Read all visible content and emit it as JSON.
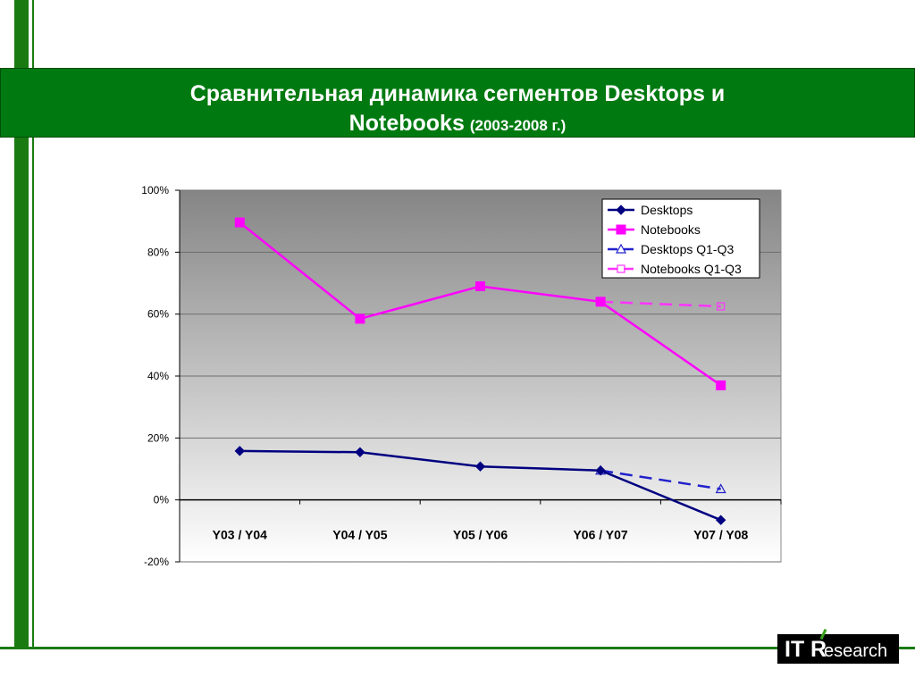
{
  "slide": {
    "title_line1": "Сравнительная динамика сегментов Desktops и",
    "title_line2": "Notebooks",
    "title_years": "(2003-2008 г.)"
  },
  "logo": {
    "it": "IT",
    "r": "R",
    "rest": "esearch"
  },
  "colors": {
    "frame_green": "#1a7a12",
    "title_bg": "#007a10",
    "desktops": "#000080",
    "notebooks": "#ff00ff",
    "desktops_q": "#2222cc",
    "notebooks_q": "#ff33ff"
  },
  "chart_data": {
    "type": "line",
    "title": "",
    "xlabel": "",
    "ylabel": "",
    "categories": [
      "Y03 / Y04",
      "Y04 / Y05",
      "Y05 / Y06",
      "Y06 / Y07",
      "Y07 / Y08"
    ],
    "ylim": [
      -20,
      100
    ],
    "yticks": [
      -20,
      0,
      20,
      40,
      60,
      80,
      100
    ],
    "ytick_labels": [
      "-20%",
      "0%",
      "20%",
      "40%",
      "60%",
      "80%",
      "100%"
    ],
    "grid": true,
    "legend_position": "top-right",
    "series": [
      {
        "name": "Desktops",
        "values": [
          15.8,
          15.4,
          10.8,
          9.5,
          -6.5
        ],
        "color": "#000080",
        "marker": "diamond",
        "dashed": false
      },
      {
        "name": "Notebooks",
        "values": [
          89.6,
          58.5,
          69.0,
          64.0,
          37.0
        ],
        "color": "#ff00ff",
        "marker": "square",
        "dashed": false
      },
      {
        "name": "Desktops Q1-Q3",
        "values": [
          null,
          null,
          null,
          9.5,
          3.5
        ],
        "color": "#2222cc",
        "marker": "triangle",
        "dashed": true
      },
      {
        "name": "Notebooks Q1-Q3",
        "values": [
          null,
          null,
          null,
          64.0,
          62.5
        ],
        "color": "#ff33ff",
        "marker": "square-open",
        "dashed": true
      }
    ]
  }
}
